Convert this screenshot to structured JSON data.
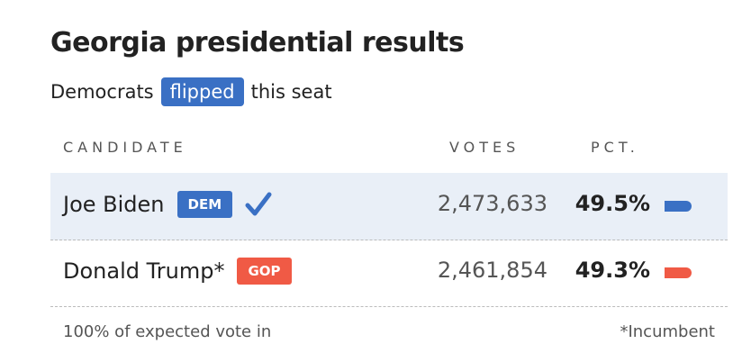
{
  "header": {
    "title": "Georgia presidential results",
    "subtitle": {
      "before": "Democrats",
      "highlight": "flipped",
      "after": "this seat"
    }
  },
  "table": {
    "columns": [
      "CANDIDATE",
      "VOTES",
      "PCT."
    ],
    "rows": [
      {
        "name": "Joe Biden",
        "party": "DEM",
        "color": "#3a70c4",
        "winner": true,
        "votes": "2,473,633",
        "pct": {
          "value": 49.5,
          "label": "49.5%"
        }
      },
      {
        "name": "Donald Trump*",
        "party": "GOP",
        "color": "#f05a45",
        "winner": false,
        "votes": "2,461,854",
        "pct": {
          "value": 49.3,
          "label": "49.3%"
        }
      }
    ]
  },
  "footer": {
    "left": "100% of expected vote in",
    "right": "*Incumbent"
  }
}
